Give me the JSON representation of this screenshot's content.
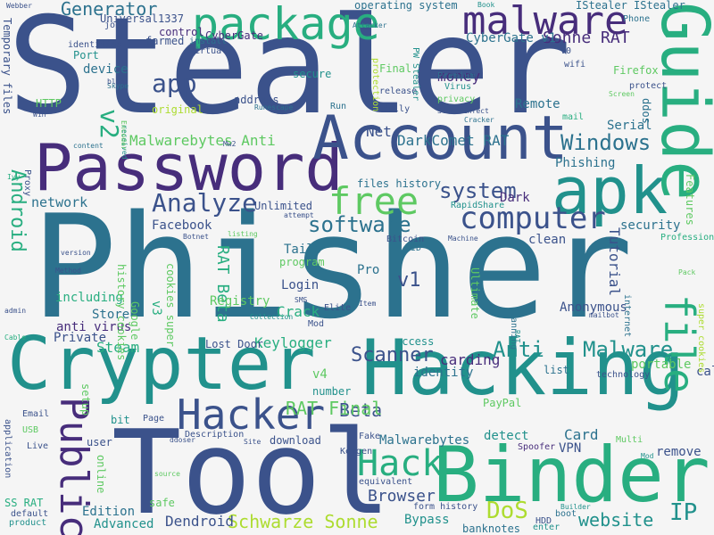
{
  "palette": [
    "#3b528b",
    "#2c728e",
    "#21918c",
    "#28ae80",
    "#5ec962",
    "#addc30",
    "#fde725",
    "#472d7b",
    "#440154"
  ],
  "words": [
    {
      "text": "Stealer",
      "color": "#3b528b"
    },
    {
      "text": "Phisher",
      "color": "#2c728e"
    },
    {
      "text": "Password",
      "color": "#472d7b"
    },
    {
      "text": "Account",
      "color": "#3b528b"
    },
    {
      "text": "apk",
      "color": "#21918c"
    },
    {
      "text": "Guide",
      "color": "#28ae80"
    },
    {
      "text": "package",
      "color": "#28ae80"
    },
    {
      "text": "malware",
      "color": "#472d7b"
    },
    {
      "text": "Crypter",
      "color": "#21918c"
    },
    {
      "text": "Hacking",
      "color": "#21918c"
    },
    {
      "text": "Tool",
      "color": "#3b528b"
    },
    {
      "text": "Binder",
      "color": "#28ae80"
    },
    {
      "text": "Hacker",
      "color": "#3b528b"
    },
    {
      "text": "Hack",
      "color": "#28ae80"
    },
    {
      "text": "Public",
      "color": "#472d7b"
    },
    {
      "text": "free",
      "color": "#5ec962"
    },
    {
      "text": "file",
      "color": "#28ae80"
    },
    {
      "text": "computer",
      "color": "#3b528b"
    },
    {
      "text": "Analyze",
      "color": "#3b528b"
    },
    {
      "text": "Anti",
      "color": "#21918c"
    },
    {
      "text": "Malware",
      "color": "#21918c"
    },
    {
      "text": "software",
      "color": "#2c728e"
    },
    {
      "text": "Android",
      "color": "#28ae80"
    },
    {
      "text": "Generator",
      "color": "#2c728e"
    },
    {
      "text": "Windows",
      "color": "#2c728e"
    },
    {
      "text": "system",
      "color": "#3b528b"
    },
    {
      "text": "app",
      "color": "#3b528b"
    },
    {
      "text": "v2",
      "color": "#28ae80"
    },
    {
      "text": "Malwarebytes Anti",
      "color": "#5ec962"
    },
    {
      "text": "Scanner",
      "color": "#3b528b"
    },
    {
      "text": "DoS",
      "color": "#addc30"
    },
    {
      "text": "IP",
      "color": "#21918c"
    },
    {
      "text": "Schwarze Sonne",
      "color": "#addc30"
    },
    {
      "text": "website",
      "color": "#21918c"
    },
    {
      "text": "Browser",
      "color": "#3b528b"
    },
    {
      "text": "Beta",
      "color": "#3b528b"
    },
    {
      "text": "RAT Final",
      "color": "#5ec962"
    },
    {
      "text": "v1",
      "color": "#3b528b"
    },
    {
      "text": "Sonne RAT",
      "color": "#472d7b"
    },
    {
      "text": "CyberGate v1",
      "color": "#2c728e"
    },
    {
      "text": "DarkComet RAT",
      "color": "#2c728e"
    },
    {
      "text": "Net",
      "color": "#3b528b"
    },
    {
      "text": "Phishing",
      "color": "#2c728e"
    },
    {
      "text": "Tutorial",
      "color": "#3b528b"
    },
    {
      "text": "security",
      "color": "#2c728e"
    },
    {
      "text": "Serial",
      "color": "#2c728e"
    },
    {
      "text": "Remote",
      "color": "#2c728e"
    },
    {
      "text": "Facebook",
      "color": "#3b528b"
    },
    {
      "text": "network",
      "color": "#2c728e"
    },
    {
      "text": "RAT Beta",
      "color": "#28ae80"
    },
    {
      "text": "Keylogger",
      "color": "#28ae80"
    },
    {
      "text": "Crack",
      "color": "#28ae80"
    },
    {
      "text": "Login",
      "color": "#3b528b"
    },
    {
      "text": "carding",
      "color": "#472d7b"
    },
    {
      "text": "identity",
      "color": "#2c728e"
    },
    {
      "text": "Card",
      "color": "#2c728e"
    },
    {
      "text": "detect",
      "color": "#21918c"
    },
    {
      "text": "Malwarebytes",
      "color": "#2c728e"
    },
    {
      "text": "Dendroid",
      "color": "#3b528b"
    },
    {
      "text": "Edition",
      "color": "#2c728e"
    },
    {
      "text": "Advanced",
      "color": "#21918c"
    },
    {
      "text": "Bypass",
      "color": "#21918c"
    },
    {
      "text": "money",
      "color": "#472d7b"
    },
    {
      "text": "Steam",
      "color": "#28ae80"
    },
    {
      "text": "Store",
      "color": "#2c728e"
    },
    {
      "text": "Anonymous",
      "color": "#3b528b"
    },
    {
      "text": "portable",
      "color": "#5ec962"
    },
    {
      "text": "call",
      "color": "#3b528b"
    },
    {
      "text": "remove",
      "color": "#3b528b"
    },
    {
      "text": "VPN",
      "color": "#3b528b"
    },
    {
      "text": "Tails",
      "color": "#2c728e"
    },
    {
      "text": "Dark",
      "color": "#472d7b"
    },
    {
      "text": "Pro",
      "color": "#2c728e"
    },
    {
      "text": "clean",
      "color": "#3b528b"
    },
    {
      "text": "v3",
      "color": "#28ae80"
    },
    {
      "text": "v4",
      "color": "#5ec962"
    },
    {
      "text": "Private",
      "color": "#3b528b"
    },
    {
      "text": "anti virus",
      "color": "#472d7b"
    },
    {
      "text": "including",
      "color": "#28ae80"
    },
    {
      "text": "Ultimate",
      "color": "#5ec962"
    },
    {
      "text": "ddos",
      "color": "#2c728e"
    },
    {
      "text": "device",
      "color": "#2c728e"
    },
    {
      "text": "farmed",
      "color": "#3b528b"
    },
    {
      "text": "control",
      "color": "#472d7b"
    },
    {
      "text": "CyberGate",
      "color": "#472d7b"
    },
    {
      "text": "Universal1337",
      "color": "#3b528b"
    },
    {
      "text": "operating system",
      "color": "#2c728e"
    },
    {
      "text": "IStealer IStealer",
      "color": "#2c728e"
    },
    {
      "text": "Temporary files",
      "color": "#3b528b"
    },
    {
      "text": "HTTP",
      "color": "#5ec962"
    },
    {
      "text": "Port",
      "color": "#21918c"
    },
    {
      "text": "identities",
      "color": "#3b528b"
    },
    {
      "text": "job",
      "color": "#3b528b"
    },
    {
      "text": "Registry",
      "color": "#5ec962"
    },
    {
      "text": "Lost Door",
      "color": "#3b528b"
    },
    {
      "text": "Keygen",
      "color": "#3b528b"
    },
    {
      "text": "Elite",
      "color": "#3b528b"
    },
    {
      "text": "Mod",
      "color": "#3b528b"
    },
    {
      "text": "number",
      "color": "#21918c"
    },
    {
      "text": "access",
      "color": "#21918c"
    },
    {
      "text": "setup",
      "color": "#5ec962"
    },
    {
      "text": "user",
      "color": "#3b528b"
    },
    {
      "text": "bit",
      "color": "#21918c"
    },
    {
      "text": "Page",
      "color": "#3b528b"
    },
    {
      "text": "Description",
      "color": "#3b528b"
    },
    {
      "text": "download",
      "color": "#3b528b"
    },
    {
      "text": "Fake",
      "color": "#3b528b"
    },
    {
      "text": "Spoofer",
      "color": "#472d7b"
    },
    {
      "text": "PayPal",
      "color": "#5ec962"
    },
    {
      "text": "list",
      "color": "#2c728e"
    },
    {
      "text": "technology",
      "color": "#3b528b"
    },
    {
      "text": "Multi",
      "color": "#5ec962"
    },
    {
      "text": "Email",
      "color": "#3b528b"
    },
    {
      "text": "USB",
      "color": "#5ec962"
    },
    {
      "text": "Live",
      "color": "#3b528b"
    },
    {
      "text": "application",
      "color": "#3b528b"
    },
    {
      "text": "SS RAT",
      "color": "#28ae80"
    },
    {
      "text": "online",
      "color": "#5ec962"
    },
    {
      "text": "safe",
      "color": "#5ec962"
    },
    {
      "text": "form history",
      "color": "#3b528b"
    },
    {
      "text": "banknotes",
      "color": "#2c728e"
    },
    {
      "text": "HDD",
      "color": "#3b528b"
    },
    {
      "text": "boot",
      "color": "#2c728e"
    },
    {
      "text": "enter",
      "color": "#21918c"
    },
    {
      "text": "equivalent",
      "color": "#3b528b"
    },
    {
      "text": "default",
      "color": "#3b528b"
    },
    {
      "text": "product",
      "color": "#21918c"
    },
    {
      "text": "Proxy",
      "color": "#3b528b"
    },
    {
      "text": "cookies super",
      "color": "#5ec962"
    },
    {
      "text": "history cookies",
      "color": "#5ec962"
    },
    {
      "text": "Google",
      "color": "#5ec962"
    },
    {
      "text": "Unlimited",
      "color": "#3b528b"
    },
    {
      "text": "files history",
      "color": "#2c728e"
    },
    {
      "text": "program",
      "color": "#5ec962"
    },
    {
      "text": "Bitcoin",
      "color": "#3b528b"
    },
    {
      "text": "ID",
      "color": "#2c728e"
    },
    {
      "text": "RapidShare",
      "color": "#21918c"
    },
    {
      "text": "Features",
      "color": "#5ec962"
    },
    {
      "text": "Professional",
      "color": "#28ae80"
    },
    {
      "text": "super cookies",
      "color": "#addc30"
    },
    {
      "text": "internet",
      "color": "#2c728e"
    },
    {
      "text": "scanning",
      "color": "#2c728e"
    },
    {
      "text": "Firefox",
      "color": "#5ec962"
    },
    {
      "text": "privacy",
      "color": "#5ec962"
    },
    {
      "text": "Premium",
      "color": "#2c728e"
    },
    {
      "text": "Virus",
      "color": "#21918c"
    },
    {
      "text": "protection",
      "color": "#addc30"
    },
    {
      "text": "PW Stealer",
      "color": "#21918c"
    },
    {
      "text": "Final",
      "color": "#5ec962"
    },
    {
      "text": "fully",
      "color": "#3b528b"
    },
    {
      "text": "release",
      "color": "#3b528b"
    },
    {
      "text": "secure",
      "color": "#21918c"
    },
    {
      "text": "address",
      "color": "#3b528b"
    },
    {
      "text": "install",
      "color": "#2c728e"
    },
    {
      "text": "virtual",
      "color": "#3b528b"
    },
    {
      "text": "original",
      "color": "#addc30"
    },
    {
      "text": "Run",
      "color": "#2c728e"
    },
    {
      "text": "wifi",
      "color": "#3b528b"
    },
    {
      "text": "mail",
      "color": "#28ae80"
    },
    {
      "text": "protect",
      "color": "#3b528b"
    },
    {
      "text": "Phone",
      "color": "#2c728e"
    },
    {
      "text": "v0",
      "color": "#3b528b"
    },
    {
      "text": "Skype",
      "color": "#2c728e"
    },
    {
      "text": "Win",
      "color": "#3b528b"
    },
    {
      "text": "content",
      "color": "#2c728e"
    },
    {
      "text": "Ivy",
      "color": "#28ae80"
    },
    {
      "text": "admin",
      "color": "#3b528b"
    },
    {
      "text": "Cable",
      "color": "#28ae80"
    },
    {
      "text": "Method",
      "color": "#3b528b"
    },
    {
      "text": "version",
      "color": "#3b528b"
    },
    {
      "text": "received",
      "color": "#21918c"
    },
    {
      "text": "Botnet",
      "color": "#3b528b"
    },
    {
      "text": "listing",
      "color": "#5ec962"
    },
    {
      "text": "SMS",
      "color": "#3b528b"
    },
    {
      "text": "Collection",
      "color": "#21918c"
    },
    {
      "text": "Item",
      "color": "#3b528b"
    },
    {
      "text": "attempt",
      "color": "#3b528b"
    },
    {
      "text": "Machine",
      "color": "#3b528b"
    },
    {
      "text": "Cracker",
      "color": "#2c728e"
    },
    {
      "text": "Stonedinfect",
      "color": "#3b528b"
    },
    {
      "text": "Attacker",
      "color": "#2c728e"
    },
    {
      "text": "Book",
      "color": "#21918c"
    },
    {
      "text": "RAT",
      "color": "#21918c"
    },
    {
      "text": "ddoser",
      "color": "#3b528b"
    },
    {
      "text": "Site",
      "color": "#3b528b"
    },
    {
      "text": "source",
      "color": "#5ec962"
    },
    {
      "text": "Builder",
      "color": "#21918c"
    },
    {
      "text": "Mod",
      "color": "#21918c"
    },
    {
      "text": "mailbot",
      "color": "#3b528b"
    },
    {
      "text": "Pack",
      "color": "#5ec962"
    },
    {
      "text": "Screen",
      "color": "#5ec962"
    },
    {
      "text": "Webber",
      "color": "#3b528b"
    },
    {
      "text": "Runescape",
      "color": "#2c728e"
    },
    {
      "text": "Mw2",
      "color": "#3b528b"
    },
    {
      "text": "blob",
      "color": "#3b528b"
    },
    {
      "text": "Encoder",
      "color": "#5ec962"
    }
  ]
}
